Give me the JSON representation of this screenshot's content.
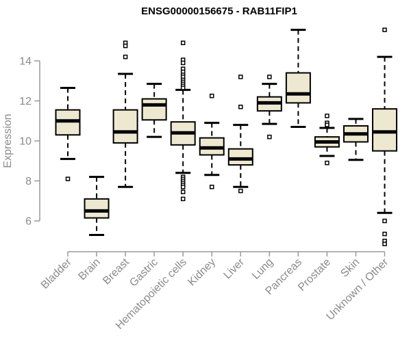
{
  "title": "ENSG00000156675 - RAB11FIP1",
  "colors": {
    "background": "#ffffff",
    "box_fill": "#EDE8D0",
    "box_border": "#000000",
    "median": "#000000",
    "whisker": "#000000",
    "outlier_border": "#000000",
    "outlier_fill": "#ffffff",
    "axis_line": "#999999",
    "axis_text": "#8a8a8a",
    "title_text": "#000000"
  },
  "chart_data": {
    "type": "boxplot",
    "title": "ENSG00000156675 - RAB11FIP1",
    "xlabel": "",
    "ylabel": "Expression",
    "ylim": [
      4.5,
      15.9
    ],
    "yticks": [
      6,
      8,
      10,
      12,
      14
    ],
    "grid": false,
    "legend": "none",
    "categories": [
      "Bladder",
      "Brain",
      "Breast",
      "Gastric",
      "Hematopoietic cells",
      "Kidney",
      "Liver",
      "Lung",
      "Pancreas",
      "Prostate",
      "Skin",
      "Unknown / Other"
    ],
    "series": [
      {
        "name": "Bladder",
        "whisker_low": 9.1,
        "q1": 10.3,
        "median": 11.0,
        "q3": 11.55,
        "whisker_high": 12.65,
        "outliers": [
          8.1
        ]
      },
      {
        "name": "Brain",
        "whisker_low": 5.3,
        "q1": 6.15,
        "median": 6.5,
        "q3": 7.1,
        "whisker_high": 8.2,
        "outliers": []
      },
      {
        "name": "Breast",
        "whisker_low": 7.7,
        "q1": 9.9,
        "median": 10.45,
        "q3": 11.55,
        "whisker_high": 13.35,
        "outliers": [
          14.9,
          14.75,
          14.2
        ]
      },
      {
        "name": "Gastric",
        "whisker_low": 10.2,
        "q1": 11.05,
        "median": 11.8,
        "q3": 12.1,
        "whisker_high": 12.85,
        "outliers": []
      },
      {
        "name": "Hematopoietic cells",
        "whisker_low": 8.4,
        "q1": 9.8,
        "median": 10.4,
        "q3": 10.95,
        "whisker_high": 12.55,
        "outliers": [
          14.9,
          14.05,
          13.9,
          13.6,
          13.45,
          13.3,
          13.2,
          13.05,
          12.95,
          12.85,
          12.75,
          12.65,
          8.2,
          8.1,
          8.0,
          7.9,
          7.8,
          7.7,
          7.45,
          7.1
        ]
      },
      {
        "name": "Kidney",
        "whisker_low": 8.3,
        "q1": 9.3,
        "median": 9.65,
        "q3": 10.15,
        "whisker_high": 10.9,
        "outliers": [
          12.25,
          7.7
        ]
      },
      {
        "name": "Liver",
        "whisker_low": 7.7,
        "q1": 8.8,
        "median": 9.1,
        "q3": 9.6,
        "whisker_high": 10.8,
        "outliers": [
          13.2,
          11.7,
          7.5
        ]
      },
      {
        "name": "Lung",
        "whisker_low": 10.85,
        "q1": 11.5,
        "median": 11.9,
        "q3": 12.2,
        "whisker_high": 12.85,
        "outliers": [
          13.2,
          10.2
        ]
      },
      {
        "name": "Pancreas",
        "whisker_low": 10.7,
        "q1": 11.9,
        "median": 12.35,
        "q3": 13.4,
        "whisker_high": 15.55,
        "outliers": []
      },
      {
        "name": "Prostate",
        "whisker_low": 9.25,
        "q1": 9.7,
        "median": 9.95,
        "q3": 10.2,
        "whisker_high": 10.65,
        "outliers": [
          11.25,
          10.9,
          10.8,
          8.9
        ]
      },
      {
        "name": "Skin",
        "whisker_low": 9.05,
        "q1": 9.95,
        "median": 10.35,
        "q3": 10.75,
        "whisker_high": 11.1,
        "outliers": []
      },
      {
        "name": "Unknown / Other",
        "whisker_low": 6.4,
        "q1": 9.5,
        "median": 10.45,
        "q3": 11.6,
        "whisker_high": 14.2,
        "outliers": [
          15.55,
          6.0,
          5.35,
          5.0,
          4.85
        ]
      }
    ]
  }
}
